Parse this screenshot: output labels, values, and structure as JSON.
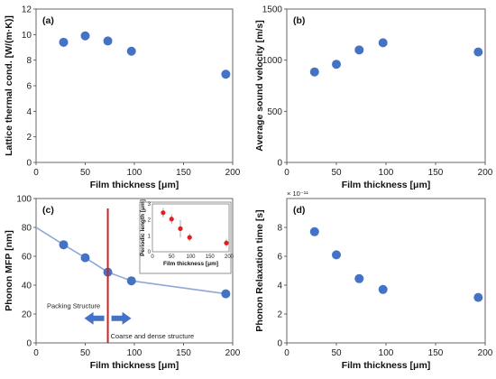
{
  "chart_data": [
    {
      "type": "scatter",
      "panel_label": "(a)",
      "xlabel": "Film thickness [μm]",
      "ylabel": "Lattice thermal cond. [W/(m·K)]",
      "xlim": [
        0,
        200
      ],
      "ylim": [
        0,
        12
      ],
      "xticks": [
        0,
        50,
        100,
        150,
        200
      ],
      "yticks": [
        0,
        2,
        4,
        6,
        8,
        10,
        12
      ],
      "x": [
        28,
        50,
        73,
        97,
        193
      ],
      "y": [
        9.4,
        9.9,
        9.5,
        8.7,
        6.9
      ],
      "color": "#4472c4"
    },
    {
      "type": "scatter",
      "panel_label": "(b)",
      "xlabel": "Film thickness [μm]",
      "ylabel": "Average sound velocity [m/s]",
      "xlim": [
        0,
        200
      ],
      "ylim": [
        0,
        1500
      ],
      "xticks": [
        0,
        50,
        100,
        150,
        200
      ],
      "yticks": [
        0,
        500,
        1000,
        1500
      ],
      "x": [
        28,
        50,
        73,
        97,
        193
      ],
      "y": [
        885,
        960,
        1100,
        1170,
        1080
      ],
      "color": "#4472c4"
    },
    {
      "type": "scatter",
      "panel_label": "(c)",
      "xlabel": "Film thickness [μm]",
      "ylabel": "Phonon MFP [nm]",
      "xlim": [
        0,
        200
      ],
      "ylim": [
        0,
        100
      ],
      "xticks": [
        0,
        50,
        100,
        150,
        200
      ],
      "yticks": [
        0,
        20,
        40,
        60,
        80,
        100
      ],
      "x": [
        28,
        50,
        73,
        97,
        193
      ],
      "y": [
        68,
        59,
        49,
        43,
        34
      ],
      "trend_line": {
        "x": [
          0,
          28,
          50,
          73,
          97,
          193
        ],
        "y": [
          80,
          68,
          59,
          49,
          43,
          34
        ],
        "color": "#8fa8d8"
      },
      "vertical_line": {
        "x": 73,
        "color": "#cc2222"
      },
      "annotations": {
        "left_text": "Packing Structure",
        "right_text": "Coarse and dense structure"
      },
      "color": "#4472c4",
      "inset": {
        "type": "scatter",
        "xlabel": "Film thickness [μm]",
        "ylabel": "Periodic length [μm]",
        "xlim": [
          0,
          200
        ],
        "ylim": [
          0,
          3
        ],
        "xticks": [
          0,
          50,
          100,
          150,
          200
        ],
        "yticks": [
          0,
          1,
          2,
          3
        ],
        "x": [
          28,
          50,
          73,
          97,
          193
        ],
        "y": [
          2.45,
          2.05,
          1.45,
          0.9,
          0.55
        ],
        "err": [
          0.3,
          0.3,
          0.55,
          0.25,
          0.25
        ],
        "color": "#e02020"
      }
    },
    {
      "type": "scatter",
      "panel_label": "(d)",
      "xlabel": "Film thickness [μm]",
      "ylabel": "Phonon Relaxation time [s]",
      "scale_label": "× 10⁻¹¹",
      "xlim": [
        0,
        200
      ],
      "ylim": [
        0,
        10
      ],
      "xticks": [
        0,
        50,
        100,
        150,
        200
      ],
      "yticks": [
        0,
        2,
        4,
        6,
        8
      ],
      "x": [
        28,
        50,
        73,
        97,
        193
      ],
      "y": [
        7.7,
        6.1,
        4.45,
        3.7,
        3.15
      ],
      "color": "#4472c4"
    }
  ]
}
